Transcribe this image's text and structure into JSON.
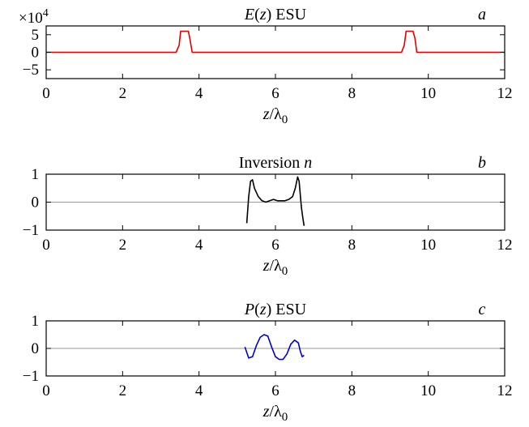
{
  "chart_data": [
    {
      "type": "line",
      "panel_letter": "a",
      "title": "E(z) ESU",
      "title_parts": {
        "italic": "E",
        "open": "(",
        "var": "z",
        "close": ") ESU"
      },
      "xlabel": {
        "var": "z",
        "sep": "/λ",
        "sub": "0"
      },
      "xlim": [
        0,
        12
      ],
      "ylim": [
        -7.5,
        7.5
      ],
      "y_scale_label": {
        "base": "×10",
        "exp": "4"
      },
      "xticks": [
        "0",
        "2",
        "4",
        "6",
        "8",
        "10",
        "12"
      ],
      "yticks": [
        {
          "value": -5,
          "label": "−5"
        },
        {
          "value": 0,
          "label": "0"
        },
        {
          "value": 5,
          "label": "5"
        }
      ],
      "zero_line": false,
      "series": [
        {
          "color": "#e00000",
          "x": [
            0,
            3.4,
            3.48,
            3.52,
            3.72,
            3.76,
            3.82,
            9.3,
            9.37,
            9.42,
            9.6,
            9.65,
            9.7,
            12
          ],
          "y": [
            0,
            0,
            2.0,
            6.0,
            6.0,
            4.0,
            0,
            0,
            2.0,
            6.0,
            6.0,
            4.0,
            0,
            0
          ]
        }
      ]
    },
    {
      "type": "line",
      "panel_letter": "b",
      "title": "Inversion n",
      "title_parts": {
        "text": "Inversion ",
        "var": "n"
      },
      "xlabel": {
        "var": "z",
        "sep": "/λ",
        "sub": "0"
      },
      "xlim": [
        0,
        12
      ],
      "ylim": [
        -1,
        1
      ],
      "xticks": [
        "0",
        "2",
        "4",
        "6",
        "8",
        "10",
        "12"
      ],
      "yticks": [
        {
          "value": -1,
          "label": "−1"
        },
        {
          "value": 0,
          "label": "0"
        },
        {
          "value": 1,
          "label": "1"
        }
      ],
      "zero_line": true,
      "series": [
        {
          "color": "#000000",
          "x": [
            5.25,
            5.3,
            5.35,
            5.4,
            5.45,
            5.55,
            5.65,
            5.75,
            5.85,
            5.95,
            6.05,
            6.15,
            6.25,
            6.35,
            6.45,
            6.52,
            6.58,
            6.62,
            6.68,
            6.72,
            6.75
          ],
          "y": [
            -0.75,
            0.2,
            0.75,
            0.8,
            0.5,
            0.2,
            0.05,
            0.0,
            0.05,
            0.1,
            0.05,
            0.05,
            0.05,
            0.1,
            0.2,
            0.5,
            0.9,
            0.75,
            -0.2,
            -0.6,
            -0.85
          ]
        }
      ]
    },
    {
      "type": "line",
      "panel_letter": "c",
      "title": "P(z) ESU",
      "title_parts": {
        "italic": "P",
        "open": "(",
        "var": "z",
        "close": ") ESU"
      },
      "xlabel": {
        "var": "z",
        "sep": "/λ",
        "sub": "0"
      },
      "xlim": [
        0,
        12
      ],
      "ylim": [
        -1,
        1
      ],
      "xticks": [
        "0",
        "2",
        "4",
        "6",
        "8",
        "10",
        "12"
      ],
      "yticks": [
        {
          "value": -1,
          "label": "−1"
        },
        {
          "value": 0,
          "label": "0"
        },
        {
          "value": 1,
          "label": "1"
        }
      ],
      "zero_line": true,
      "series": [
        {
          "color": "#0000cc",
          "x": [
            5.2,
            5.3,
            5.4,
            5.5,
            5.6,
            5.7,
            5.8,
            5.9,
            6.0,
            6.1,
            6.2,
            6.3,
            6.4,
            6.5,
            6.6,
            6.65,
            6.7,
            6.75
          ],
          "y": [
            0.05,
            -0.35,
            -0.3,
            0.1,
            0.4,
            0.5,
            0.45,
            0.05,
            -0.3,
            -0.4,
            -0.4,
            -0.2,
            0.15,
            0.3,
            0.2,
            -0.1,
            -0.3,
            -0.25
          ]
        }
      ]
    }
  ]
}
